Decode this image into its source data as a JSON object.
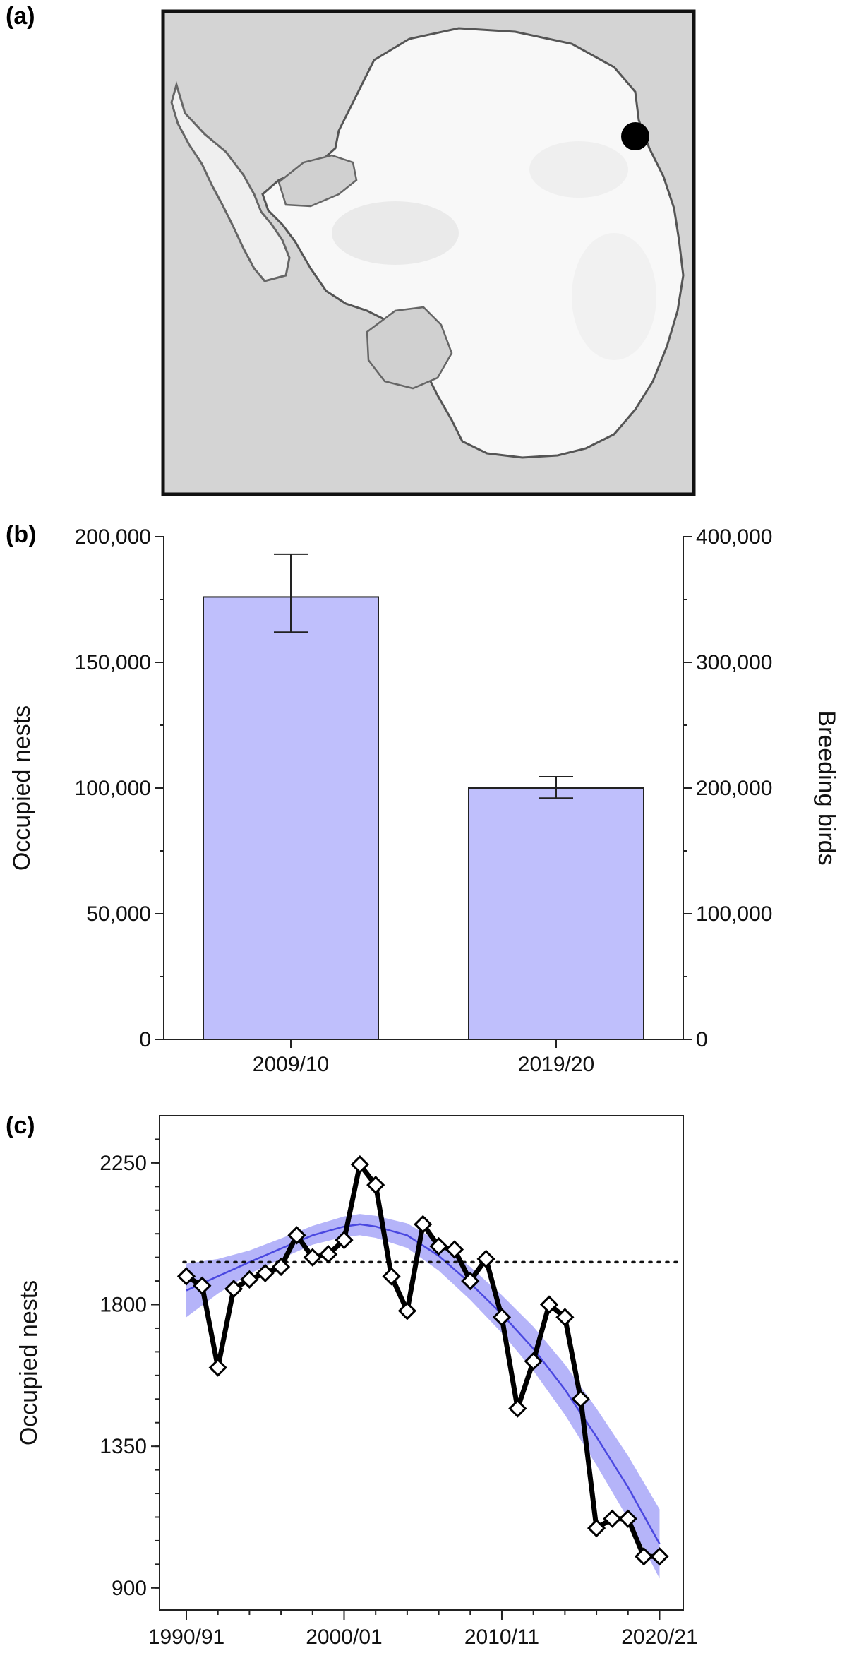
{
  "figure": {
    "panel_a_label": "(a)",
    "panel_b_label": "(b)",
    "panel_c_label": "(c)"
  },
  "map": {
    "background_color": "#d4d4d4",
    "ice_color": "#ffffff",
    "marker_color": "#000000",
    "marker_location": "East Antarctic coast"
  },
  "chart_data": [
    {
      "type": "bar",
      "panel": "(b)",
      "categories": [
        "2009/10",
        "2019/20"
      ],
      "series": [
        {
          "values": [
            176000,
            100000
          ],
          "error_high": [
            193000,
            104500
          ],
          "error_low": [
            162000,
            96000
          ]
        }
      ],
      "ylabel": "Occupied nests",
      "ylabel_right": "Breeding birds",
      "ylim": [
        0,
        200000
      ],
      "ylim_right": [
        0,
        400000
      ],
      "yticks": [
        0,
        50000,
        100000,
        150000,
        200000
      ],
      "yticks_labels": [
        "0",
        "50,000",
        "100,000",
        "150,000",
        "200,000"
      ],
      "yticks_right": [
        0,
        100000,
        200000,
        300000,
        400000
      ],
      "yticks_right_labels": [
        "0",
        "100,000",
        "200,000",
        "300,000",
        "400,000"
      ],
      "bar_color": "#bfbffc",
      "grid": false
    },
    {
      "type": "line",
      "panel": "(c)",
      "x_tick_labels": [
        "1990/91",
        "2000/01",
        "2010/11",
        "2020/21"
      ],
      "x_ticks": [
        1990,
        2000,
        2010,
        2020
      ],
      "xlim": [
        1988.3,
        2021.5
      ],
      "ylabel": "Occupied nests",
      "ylim": [
        830,
        2400
      ],
      "yticks": [
        900,
        1350,
        1800,
        2250
      ],
      "yticks_labels": [
        "900",
        "1350",
        "1800",
        "2250"
      ],
      "reference_line": 1935,
      "series": [
        {
          "style": "observed",
          "color": "#000000",
          "x": [
            1990,
            1991,
            1992,
            1993,
            1994,
            1995,
            1996,
            1997,
            1998,
            1999,
            2000,
            2001,
            2002,
            2003,
            2004,
            2005,
            2006,
            2007,
            2008,
            2009,
            2010,
            2011,
            2012,
            2013,
            2014,
            2015,
            2016,
            2017,
            2018,
            2019,
            2020
          ],
          "y": [
            1890,
            1860,
            1600,
            1850,
            1880,
            1900,
            1920,
            2020,
            1950,
            1960,
            2005,
            2245,
            2180,
            1890,
            1780,
            2055,
            1985,
            1975,
            1875,
            1945,
            1760,
            1470,
            1620,
            1800,
            1760,
            1500,
            1090,
            1120,
            1120,
            1000,
            1000
          ]
        },
        {
          "style": "fit",
          "color": "#4a48e0",
          "x": [
            1990,
            1992,
            1994,
            1996,
            1998,
            2000,
            2001,
            2002,
            2004,
            2006,
            2008,
            2010,
            2012,
            2014,
            2016,
            2018,
            2020
          ],
          "y": [
            1845,
            1890,
            1935,
            1978,
            2020,
            2048,
            2055,
            2048,
            2020,
            1955,
            1868,
            1770,
            1660,
            1530,
            1380,
            1220,
            1040
          ],
          "band_upper": [
            1930,
            1945,
            1972,
            2010,
            2050,
            2080,
            2088,
            2082,
            2058,
            2000,
            1920,
            1830,
            1730,
            1610,
            1470,
            1320,
            1150
          ],
          "band_lower": [
            1760,
            1835,
            1898,
            1946,
            1990,
            2015,
            2020,
            2012,
            1980,
            1908,
            1815,
            1710,
            1590,
            1450,
            1290,
            1120,
            930
          ]
        }
      ],
      "band_color": "#b5b4f9",
      "grid": false
    }
  ]
}
